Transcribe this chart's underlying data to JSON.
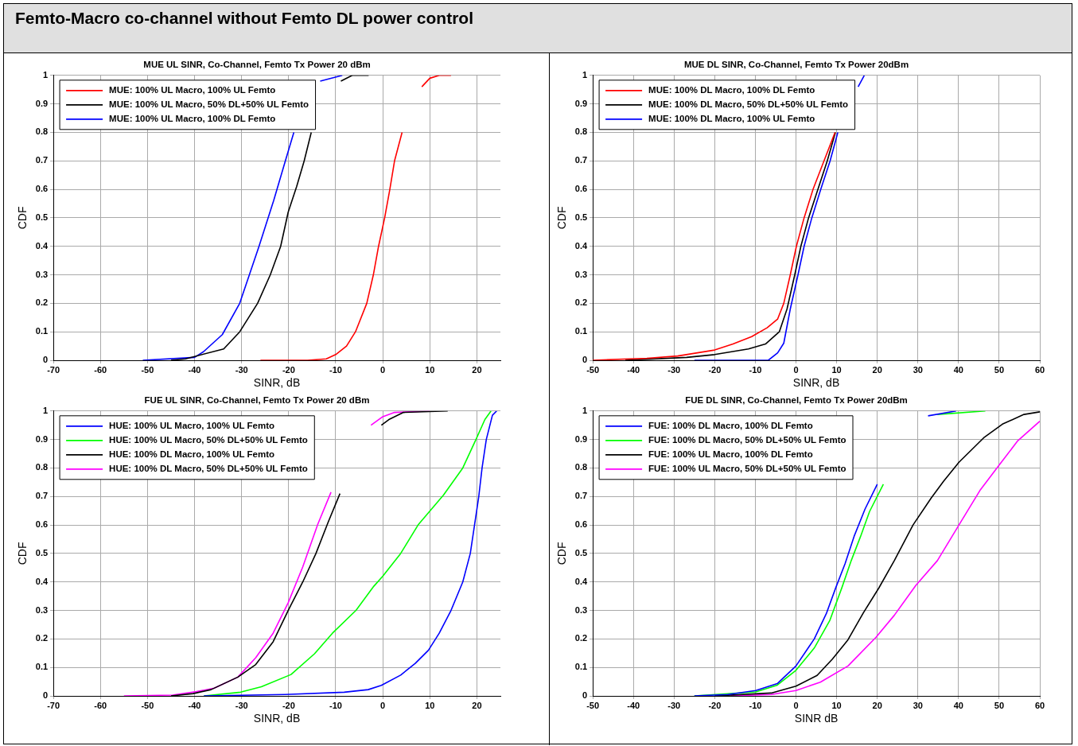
{
  "chart_data": [
    {
      "type": "line",
      "title": "MUE UL SINR, Co-Channel, Femto Tx Power 20 dBm",
      "xlabel": "SINR, dB",
      "ylabel": "CDF",
      "annotations": [
        "Femto-Macro co-channel without Femto DL power control"
      ],
      "xlim": [
        -70,
        25
      ],
      "xticks": [
        -70,
        -60,
        -50,
        -40,
        -30,
        -20,
        -10,
        0,
        10,
        20
      ],
      "ylim": [
        0,
        1
      ],
      "yticks": [
        0,
        0.1,
        0.2,
        0.3,
        0.4,
        0.5,
        0.6,
        0.7,
        0.8,
        0.9,
        1
      ],
      "grid": true,
      "legend": "top left",
      "series": [
        {
          "name": "MUE: 100% UL Macro, 100% UL Femto",
          "color": "#ff0000",
          "x": [
            -26,
            -16,
            -12,
            -10,
            -7.7,
            -5.8,
            -3.4,
            -2,
            -0.9,
            0.4,
            1.5,
            2.5,
            4.1,
            6,
            8.3,
            10,
            12,
            14.5
          ],
          "values": [
            0,
            0,
            0.005,
            0.02,
            0.05,
            0.1,
            0.2,
            0.3,
            0.4,
            0.5,
            0.6,
            0.7,
            0.8,
            null,
            0.96,
            0.99,
            1,
            1
          ]
        },
        {
          "name": "MUE: 100% UL Macro, 50% DL+50% UL Femto",
          "color": "#000000",
          "x": [
            -45,
            -41.9,
            -33.8,
            -30.4,
            -26.6,
            -23.9,
            -21.7,
            -20.1,
            -18.3,
            -16.7,
            -15.2,
            -12,
            -8.9,
            -6.5,
            -3
          ],
          "values": [
            0,
            0.005,
            0.04,
            0.1,
            0.2,
            0.3,
            0.4,
            0.52,
            0.61,
            0.7,
            0.8,
            null,
            0.98,
            1,
            1
          ]
        },
        {
          "name": "MUE: 100% UL Macro, 100% DL Femto",
          "color": "#0000ff",
          "x": [
            -51,
            -40,
            -38.1,
            -34.1,
            -30.4,
            -26.3,
            -23.2,
            -20.7,
            -18.9,
            -16,
            -13.3,
            -8.6
          ],
          "values": [
            0,
            0.01,
            0.03,
            0.09,
            0.2,
            0.4,
            0.56,
            0.7,
            0.8,
            null,
            0.98,
            1
          ]
        }
      ]
    },
    {
      "type": "line",
      "title": "MUE DL SINR, Co-Channel, Femto Tx Power 20dBm",
      "xlabel": "SINR, dB",
      "ylabel": "CDF",
      "xlim": [
        -50,
        60
      ],
      "xticks": [
        -50,
        -40,
        -30,
        -20,
        -10,
        0,
        10,
        20,
        30,
        40,
        50,
        60
      ],
      "ylim": [
        0,
        1
      ],
      "yticks": [
        0,
        0.1,
        0.2,
        0.3,
        0.4,
        0.5,
        0.6,
        0.7,
        0.8,
        0.9,
        1
      ],
      "grid": true,
      "legend": "top left",
      "series": [
        {
          "name": "MUE: 100% DL Macro, 100% DL Femto",
          "color": "#ff0000",
          "x": [
            -50,
            -36.7,
            -29.1,
            -20,
            -15.5,
            -10.9,
            -7.1,
            -4.5,
            -3,
            -1.4,
            0.1,
            2,
            4.2,
            6.9,
            9.6
          ],
          "values": [
            0,
            0.007,
            0.015,
            0.036,
            0.057,
            0.083,
            0.114,
            0.145,
            0.2,
            0.3,
            0.4,
            0.5,
            0.6,
            0.7,
            0.8
          ]
        },
        {
          "name": "MUE: 100% DL Macro, 50% DL+50% UL Femto",
          "color": "#000000",
          "x": [
            -42,
            -26.9,
            -20,
            -11.7,
            -7.5,
            -4.1,
            -2.2,
            -0.3,
            1.2,
            3.1,
            5.4,
            7.7,
            9.7
          ],
          "values": [
            0,
            0.01,
            0.02,
            0.04,
            0.057,
            0.1,
            0.18,
            0.3,
            0.4,
            0.5,
            0.6,
            0.7,
            0.8
          ]
        },
        {
          "name": "MUE: 100% DL Macro, 100% UL Femto",
          "color": "#0000ff",
          "x": [
            -25,
            -6.8,
            -4.5,
            -3,
            -1.4,
            0.5,
            2,
            3.9,
            6.1,
            8.4,
            10.3,
            12,
            15.3,
            16.8
          ],
          "values": [
            0,
            0,
            0.026,
            0.06,
            0.18,
            0.3,
            0.4,
            0.5,
            0.6,
            0.7,
            0.8,
            null,
            0.96,
            1
          ]
        }
      ]
    },
    {
      "type": "line",
      "title": "FUE UL SINR, Co-Channel, Femto Tx Power 20 dBm",
      "xlabel": "SINR, dB",
      "ylabel": "CDF",
      "xlim": [
        -70,
        25
      ],
      "xticks": [
        -70,
        -60,
        -50,
        -40,
        -30,
        -20,
        -10,
        0,
        10,
        20
      ],
      "ylim": [
        0,
        1
      ],
      "yticks": [
        0,
        0.1,
        0.2,
        0.3,
        0.4,
        0.5,
        0.6,
        0.7,
        0.8,
        0.9,
        1
      ],
      "grid": true,
      "legend": "top left",
      "series": [
        {
          "name": "HUE: 100% UL Macro, 100% UL Femto",
          "color": "#0000ff",
          "x": [
            -38,
            -20.8,
            -8.2,
            -3.1,
            -0.3,
            3.8,
            6.9,
            9.7,
            12,
            14.5,
            17,
            18.6,
            19.5,
            20.4,
            21.1,
            22,
            23.3,
            24.2
          ],
          "values": [
            0,
            0.005,
            0.013,
            0.022,
            0.037,
            0.073,
            0.114,
            0.16,
            0.22,
            0.3,
            0.4,
            0.5,
            0.6,
            0.7,
            0.8,
            0.9,
            0.985,
            1
          ]
        },
        {
          "name": "HUE: 100% UL Macro, 50% DL+50% UL Femto",
          "color": "#00ff00",
          "x": [
            -38,
            -30.2,
            -25.8,
            -19.5,
            -14.5,
            -10.7,
            -5.7,
            -1.9,
            0,
            3.8,
            7.5,
            12.9,
            17,
            19.8,
            21.7,
            23
          ],
          "values": [
            0,
            0.013,
            0.032,
            0.075,
            0.148,
            0.22,
            0.3,
            0.385,
            0.42,
            0.5,
            0.6,
            0.705,
            0.8,
            0.9,
            0.97,
            1
          ]
        },
        {
          "name": "HUE: 100% DL Macro, 100% UL Femto",
          "color": "#000000",
          "x": [
            -45,
            -40.3,
            -36.5,
            -30.8,
            -27,
            -23.3,
            -20.1,
            -17,
            -14.2,
            -11.6,
            -9.1,
            -5,
            -0.3,
            1.3,
            4.4,
            13.8
          ],
          "values": [
            0,
            0.008,
            0.022,
            0.066,
            0.11,
            0.19,
            0.3,
            0.4,
            0.5,
            0.61,
            0.71,
            null,
            0.95,
            0.97,
            0.995,
            1
          ]
        },
        {
          "name": "HUE: 100% DL Macro, 50% DL+50% UL Femto",
          "color": "#ff00ff",
          "x": [
            -55,
            -44.7,
            -39.6,
            -35.8,
            -30.8,
            -27,
            -23.3,
            -20.1,
            -17,
            -13.8,
            -11,
            -7,
            -2.5,
            0,
            2.5,
            10
          ],
          "values": [
            0,
            0.003,
            0.015,
            0.027,
            0.066,
            0.134,
            0.22,
            0.327,
            0.453,
            0.603,
            0.715,
            null,
            0.95,
            0.98,
            0.995,
            1
          ]
        }
      ]
    },
    {
      "type": "line",
      "title": "FUE DL SINR, Co-Channel, Femto Tx Power 20dBm",
      "xlabel": "SINR dB",
      "ylabel": "CDF",
      "xlim": [
        -50,
        60
      ],
      "xticks": [
        -50,
        -40,
        -30,
        -20,
        -10,
        0,
        10,
        20,
        30,
        40,
        50,
        60
      ],
      "ylim": [
        0,
        1
      ],
      "yticks": [
        0,
        0.1,
        0.2,
        0.3,
        0.4,
        0.5,
        0.6,
        0.7,
        0.8,
        0.9,
        1
      ],
      "grid": true,
      "legend": "top left",
      "series": [
        {
          "name": "FUE: 100% DL Macro, 100% DL Femto",
          "color": "#0000ff",
          "x": [
            -25,
            -16.8,
            -9.9,
            -4.6,
            0,
            4.5,
            7.5,
            9.8,
            12.1,
            14.3,
            17,
            20,
            26,
            32.5,
            39.4
          ],
          "values": [
            0,
            0.005,
            0.019,
            0.043,
            0.105,
            0.2,
            0.29,
            0.38,
            0.465,
            0.56,
            0.656,
            0.743,
            null,
            0.983,
            1
          ]
        },
        {
          "name": "FUE: 100% DL Macro, 50% DL+50% UL Femto",
          "color": "#00ff00",
          "x": [
            -25,
            -9.9,
            -4.6,
            0,
            4.5,
            8.3,
            11.3,
            13.6,
            15.9,
            18.1,
            21.5,
            28,
            34.8,
            46.6
          ],
          "values": [
            0,
            0.014,
            0.038,
            0.09,
            0.168,
            0.264,
            0.38,
            0.475,
            0.56,
            0.647,
            0.743,
            null,
            0.988,
            1
          ]
        },
        {
          "name": "FUE: 100% UL Macro, 100% DL Femto",
          "color": "#000000",
          "x": [
            -20,
            -6.1,
            0,
            5.2,
            9,
            12.8,
            16.6,
            20.4,
            24.2,
            28.8,
            33.3,
            36.3,
            40.1,
            46.2,
            50.8,
            56.1,
            60
          ],
          "values": [
            0,
            0.01,
            0.034,
            0.072,
            0.13,
            0.197,
            0.292,
            0.379,
            0.475,
            0.6,
            0.695,
            0.753,
            0.82,
            0.906,
            0.954,
            0.988,
            0.997
          ]
        },
        {
          "name": "FUE: 100% UL Macro, 50% DL+50% UL Femto",
          "color": "#ff00ff",
          "x": [
            -16,
            -6.1,
            0,
            6,
            12.8,
            19.7,
            24.2,
            29.5,
            34.8,
            40.1,
            45.4,
            50,
            54.6,
            60
          ],
          "values": [
            0,
            0.005,
            0.019,
            0.048,
            0.105,
            0.206,
            0.283,
            0.388,
            0.475,
            0.6,
            0.724,
            0.81,
            0.896,
            0.964
          ]
        }
      ]
    }
  ]
}
